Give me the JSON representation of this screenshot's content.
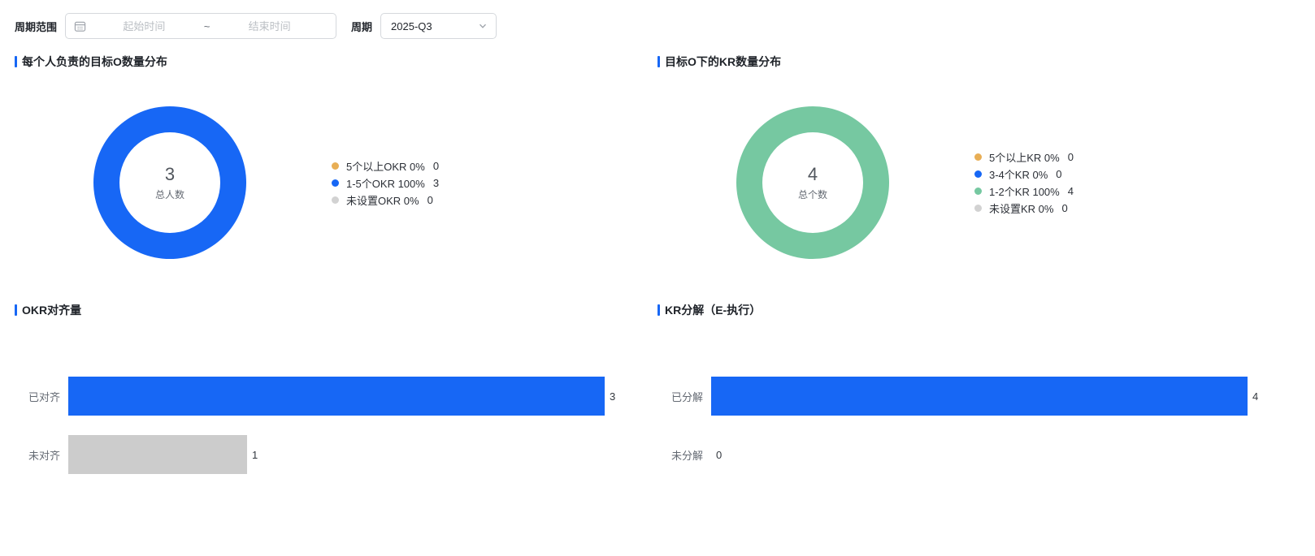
{
  "filter_bar": {
    "period_range_label": "周期范围",
    "date_range": {
      "start_placeholder": "起始时间",
      "separator": "~",
      "end_placeholder": "结束时间",
      "icon": "calendar-icon"
    },
    "period_label": "周期",
    "period_select": {
      "value": "2025-Q3",
      "icon": "chevron-down-icon"
    }
  },
  "colors": {
    "primary_blue": "#1767F5",
    "green": "#76C8A1",
    "orange": "#E8AE55",
    "gray_bar": "#CCCCCC",
    "gray_dot": "#D2D2D2"
  },
  "chart_data": [
    {
      "id": "o-count-distribution",
      "type": "pie",
      "subtype": "donut",
      "title": "每个人负责的目标O数量分布",
      "center_value": "3",
      "center_label": "总人数",
      "legend_position": "right",
      "segments": [
        {
          "label": "5个以上OKR",
          "percent": 0,
          "count": 0,
          "color": "#E8AE55"
        },
        {
          "label": "1-5个OKR",
          "percent": 100,
          "count": 3,
          "color": "#1767F5"
        },
        {
          "label": "未设置OKR",
          "percent": 0,
          "count": 0,
          "color": "#D2D2D2"
        }
      ]
    },
    {
      "id": "kr-count-distribution",
      "type": "pie",
      "subtype": "donut",
      "title": "目标O下的KR数量分布",
      "center_value": "4",
      "center_label": "总个数",
      "legend_position": "right",
      "segments": [
        {
          "label": "5个以上KR",
          "percent": 0,
          "count": 0,
          "color": "#E8AE55"
        },
        {
          "label": "3-4个KR",
          "percent": 0,
          "count": 0,
          "color": "#1767F5"
        },
        {
          "label": "1-2个KR",
          "percent": 100,
          "count": 4,
          "color": "#76C8A1"
        },
        {
          "label": "未设置KR",
          "percent": 0,
          "count": 0,
          "color": "#D2D2D2"
        }
      ]
    },
    {
      "id": "okr-alignment",
      "type": "bar",
      "orientation": "horizontal",
      "title": "OKR对齐量",
      "categories": [
        "已对齐",
        "未对齐"
      ],
      "values": [
        3,
        1
      ],
      "colors": [
        "#1767F5",
        "#CCCCCC"
      ],
      "xlim": [
        0,
        3
      ],
      "grid": false
    },
    {
      "id": "kr-breakdown-execution",
      "type": "bar",
      "orientation": "horizontal",
      "title": "KR分解（E-执行）",
      "categories": [
        "已分解",
        "未分解"
      ],
      "values": [
        4,
        0
      ],
      "colors": [
        "#1767F5",
        "#CCCCCC"
      ],
      "xlim": [
        0,
        4
      ],
      "grid": false
    }
  ]
}
